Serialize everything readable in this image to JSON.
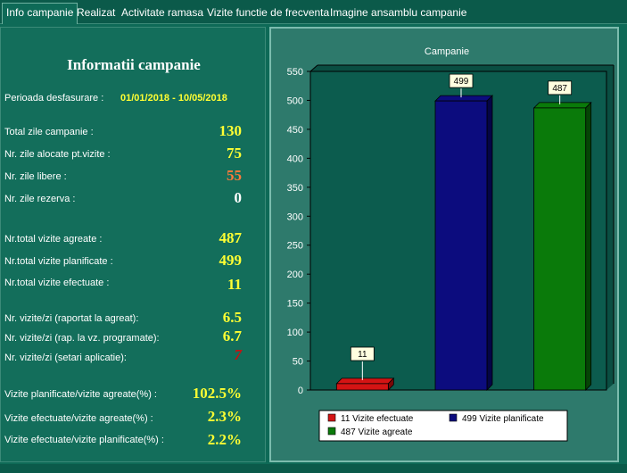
{
  "tabs": [
    {
      "label": "Info campanie"
    },
    {
      "label": "Realizat"
    },
    {
      "label": "Activitate ramasa"
    },
    {
      "label": "Vizite functie de frecventa"
    },
    {
      "label": "Imagine ansamblu campanie"
    }
  ],
  "info": {
    "title": "Informatii campanie",
    "period_label": "Perioada desfasurare :",
    "period_value": "01/01/2018 - 10/05/2018",
    "rows": [
      {
        "label": "Total zile campanie :",
        "value": "130"
      },
      {
        "label": "Nr. zile alocate pt.vizite  :",
        "value": "75"
      },
      {
        "label": "Nr. zile libere :",
        "value": "55"
      },
      {
        "label": "Nr. zile rezerva :",
        "value": "0"
      },
      {
        "label": "Nr.total vizite agreate :",
        "value": "487"
      },
      {
        "label": "Nr.total vizite planificate :",
        "value": "499"
      },
      {
        "label": "Nr.total vizite efectuate :",
        "value": "11"
      },
      {
        "label": "Nr. vizite/zi (raportat la agreat):",
        "value": "6.5"
      },
      {
        "label": "Nr. vizite/zi (rap. la vz. programate):",
        "value": "6.7"
      },
      {
        "label": "Nr. vizite/zi (setari aplicatie):",
        "value": "7"
      },
      {
        "label": "Vizite planificate/vizite agreate(%) :",
        "value": "102.5%"
      },
      {
        "label": "Vizite efectuate/vizite agreate(%) :",
        "value": "2.3%"
      },
      {
        "label": "Vizite efectuate/vizite planificate(%) :",
        "value": "2.2%"
      }
    ]
  },
  "colors": {
    "efectuate": "#d41414",
    "planificate": "#0c0c7e",
    "agreate": "#0a7a0a",
    "value_yellow": "#ffff33"
  },
  "chart_data": {
    "type": "bar",
    "title": "Campanie",
    "categories": [
      "Vizite efectuate",
      "Vizite planificate",
      "Vizite agreate"
    ],
    "values": [
      11,
      499,
      487
    ],
    "data_labels": [
      "11",
      "499",
      "487"
    ],
    "ylim": [
      0,
      550
    ],
    "yticks": [
      "0",
      "50",
      "100",
      "150",
      "200",
      "250",
      "300",
      "350",
      "400",
      "450",
      "500",
      "550"
    ],
    "grid": false,
    "legend_position": "bottom",
    "legend": [
      {
        "text": "11 Vizite efectuate"
      },
      {
        "text": "499 Vizite planificate"
      },
      {
        "text": "487 Vizite agreate"
      }
    ]
  }
}
